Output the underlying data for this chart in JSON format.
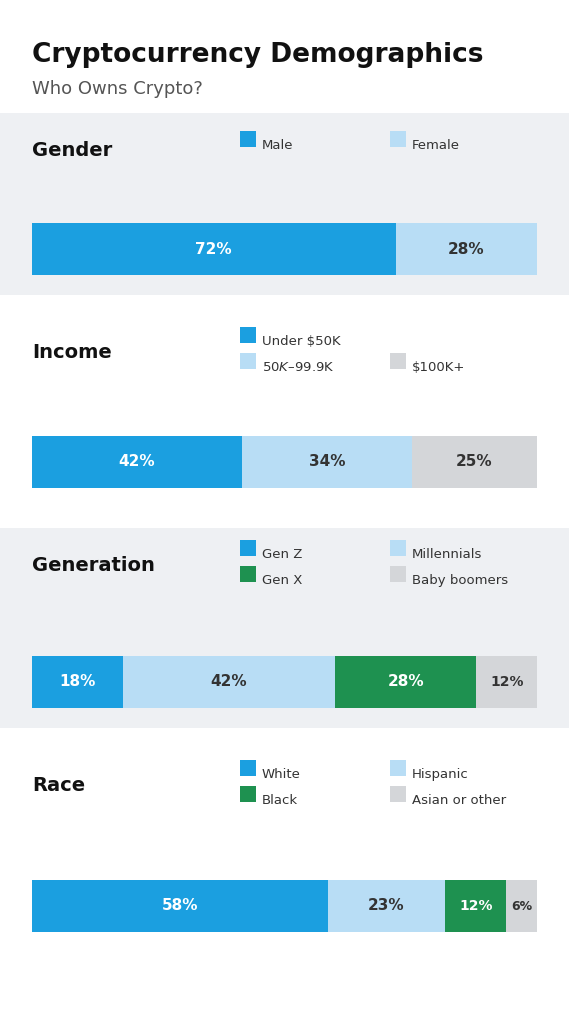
{
  "title": "Cryptocurrency Demographics",
  "subtitle": "Who Owns Crypto?",
  "title_fontsize": 19,
  "subtitle_fontsize": 13,
  "bg_color": "#ffffff",
  "panel_bg_color": "#eef0f3",
  "charts": [
    {
      "label": "Gender",
      "segments": [
        72,
        28
      ],
      "colors": [
        "#1b9fe0",
        "#b8ddf5"
      ],
      "text_colors": [
        "#ffffff",
        "#333333"
      ],
      "legend_rows": [
        [
          {
            "label": "Male",
            "color": "#1b9fe0"
          },
          {
            "label": "Female",
            "color": "#b8ddf5"
          }
        ]
      ]
    },
    {
      "label": "Income",
      "segments": [
        42,
        34,
        25
      ],
      "colors": [
        "#1b9fe0",
        "#b8ddf5",
        "#d4d6d9"
      ],
      "text_colors": [
        "#ffffff",
        "#333333",
        "#333333"
      ],
      "legend_rows": [
        [
          {
            "label": "Under $50K",
            "color": "#1b9fe0"
          }
        ],
        [
          {
            "label": "$50K–$99.9K",
            "color": "#b8ddf5"
          },
          {
            "label": "$100K+",
            "color": "#d4d6d9"
          }
        ]
      ]
    },
    {
      "label": "Generation",
      "segments": [
        18,
        42,
        28,
        12
      ],
      "colors": [
        "#1b9fe0",
        "#b8ddf5",
        "#1e9150",
        "#d4d6d9"
      ],
      "text_colors": [
        "#ffffff",
        "#333333",
        "#ffffff",
        "#333333"
      ],
      "legend_rows": [
        [
          {
            "label": "Gen Z",
            "color": "#1b9fe0"
          },
          {
            "label": "Millennials",
            "color": "#b8ddf5"
          }
        ],
        [
          {
            "label": "Gen X",
            "color": "#1e9150"
          },
          {
            "label": "Baby boomers",
            "color": "#d4d6d9"
          }
        ]
      ]
    },
    {
      "label": "Race",
      "segments": [
        58,
        23,
        12,
        6
      ],
      "colors": [
        "#1b9fe0",
        "#b8ddf5",
        "#1e9150",
        "#d4d6d9"
      ],
      "text_colors": [
        "#ffffff",
        "#333333",
        "#ffffff",
        "#333333"
      ],
      "legend_rows": [
        [
          {
            "label": "White",
            "color": "#1b9fe0"
          },
          {
            "label": "Hispanic",
            "color": "#b8ddf5"
          }
        ],
        [
          {
            "label": "Black",
            "color": "#1e9150"
          },
          {
            "label": "Asian or other",
            "color": "#d4d6d9"
          }
        ]
      ]
    }
  ]
}
